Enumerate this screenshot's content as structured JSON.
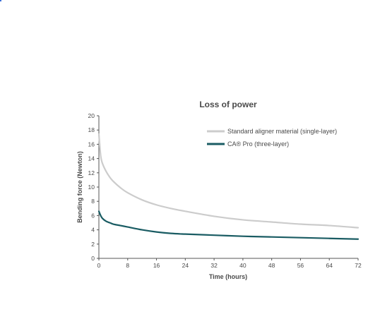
{
  "chart_data": {
    "type": "line",
    "title": "Loss of power",
    "xlabel": "Time (hours)",
    "ylabel": "Bending force (Newton)",
    "xlim": [
      0,
      72
    ],
    "ylim": [
      0,
      20
    ],
    "xticks": [
      0,
      8,
      16,
      24,
      32,
      40,
      48,
      56,
      64,
      72
    ],
    "yticks": [
      0,
      2,
      4,
      6,
      8,
      10,
      12,
      14,
      16,
      18,
      20
    ],
    "grid": false,
    "legend_position": "top-right",
    "series": [
      {
        "name": "Standard aligner material (single-layer)",
        "color": "#cccccc",
        "points": [
          [
            0,
            17.4
          ],
          [
            0.5,
            14.4
          ],
          [
            1,
            13.3
          ],
          [
            2,
            12.2
          ],
          [
            3,
            11.4
          ],
          [
            4,
            10.8
          ],
          [
            6,
            9.9
          ],
          [
            8,
            9.2
          ],
          [
            12,
            8.2
          ],
          [
            16,
            7.5
          ],
          [
            20,
            7.0
          ],
          [
            24,
            6.6
          ],
          [
            32,
            5.9
          ],
          [
            40,
            5.4
          ],
          [
            48,
            5.1
          ],
          [
            56,
            4.8
          ],
          [
            64,
            4.6
          ],
          [
            72,
            4.3
          ]
        ]
      },
      {
        "name": "CA® Pro (three-layer)",
        "color": "#1a5c63",
        "points": [
          [
            0,
            6.6
          ],
          [
            0.5,
            6.0
          ],
          [
            1,
            5.6
          ],
          [
            2,
            5.2
          ],
          [
            3,
            5.0
          ],
          [
            4,
            4.8
          ],
          [
            6,
            4.6
          ],
          [
            8,
            4.4
          ],
          [
            12,
            4.0
          ],
          [
            16,
            3.7
          ],
          [
            20,
            3.5
          ],
          [
            24,
            3.4
          ],
          [
            32,
            3.25
          ],
          [
            40,
            3.1
          ],
          [
            48,
            3.0
          ],
          [
            56,
            2.9
          ],
          [
            64,
            2.8
          ],
          [
            72,
            2.7
          ]
        ]
      }
    ]
  }
}
